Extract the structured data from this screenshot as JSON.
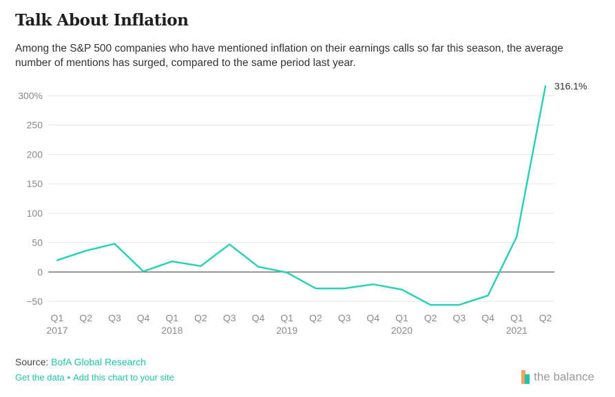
{
  "title": "Talk About Inflation",
  "subtitle": "Among the S&P 500 companies who have mentioned inflation on their earnings calls so far this season, the average number of mentions has surged, compared to the same period last year.",
  "source": {
    "prefix": "Source: ",
    "name": "BofA Global Research"
  },
  "links": {
    "get_data": "Get the data",
    "separator": "•",
    "add_chart": "Add this chart to your site"
  },
  "brand": {
    "name": "the balance"
  },
  "colors": {
    "line": "#2ad1b5",
    "accent": "#1ec4a9",
    "grid": "#e6e6e6",
    "zero_line": "#333333"
  },
  "chart_data": {
    "type": "line",
    "title": "",
    "xlabel": "",
    "ylabel": "",
    "categories": [
      "Q1",
      "Q2",
      "Q3",
      "Q4",
      "Q1",
      "Q2",
      "Q3",
      "Q4",
      "Q1",
      "Q2",
      "Q3",
      "Q4",
      "Q1",
      "Q2",
      "Q3",
      "Q4",
      "Q1",
      "Q2"
    ],
    "year_labels": [
      {
        "index": 0,
        "label": "2017"
      },
      {
        "index": 4,
        "label": "2018"
      },
      {
        "index": 8,
        "label": "2019"
      },
      {
        "index": 12,
        "label": "2020"
      },
      {
        "index": 16,
        "label": "2021"
      }
    ],
    "series": [
      {
        "values": [
          20,
          36,
          48,
          1,
          18,
          10,
          47,
          9,
          -1,
          -28,
          -28,
          -21,
          -30,
          -56,
          -56,
          -40,
          60,
          316.1
        ]
      }
    ],
    "ylim": [
      -50,
      300
    ],
    "yticks": [
      {
        "value": 300,
        "label": "300%"
      },
      {
        "value": 250,
        "label": "250"
      },
      {
        "value": 200,
        "label": "200"
      },
      {
        "value": 150,
        "label": "150"
      },
      {
        "value": 100,
        "label": "100"
      },
      {
        "value": 50,
        "label": "50"
      },
      {
        "value": 0,
        "label": "0"
      },
      {
        "value": -50,
        "label": "−50"
      }
    ],
    "annotation": {
      "index": 17,
      "label": "316.1%"
    },
    "grid": true,
    "legend": "none"
  }
}
